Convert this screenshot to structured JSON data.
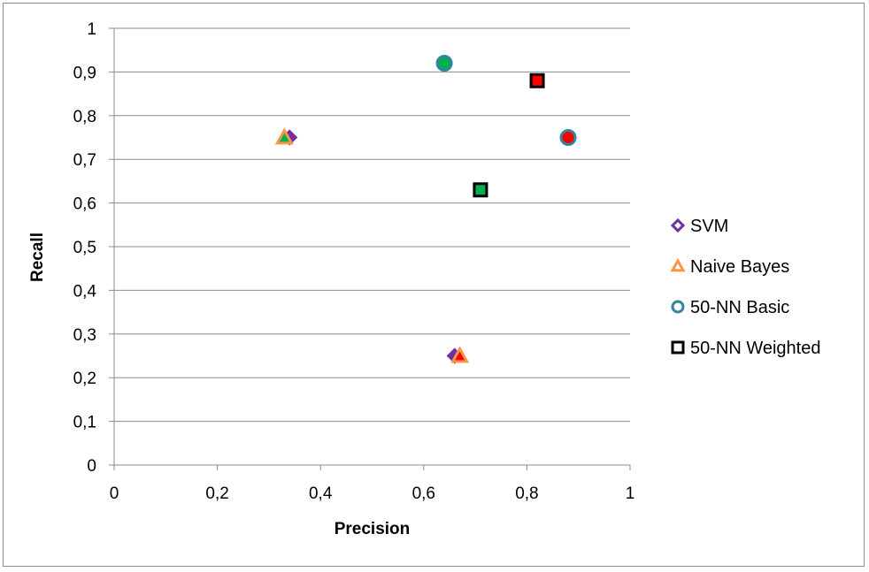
{
  "chart_data": {
    "type": "scatter",
    "xlabel": "Precision",
    "ylabel": "Recall",
    "xlim": [
      0,
      1
    ],
    "ylim": [
      0,
      1
    ],
    "x_ticks": [
      "0",
      "0,2",
      "0,4",
      "0,6",
      "0,8",
      "1"
    ],
    "y_ticks": [
      "0",
      "0,1",
      "0,2",
      "0,3",
      "0,4",
      "0,5",
      "0,6",
      "0,7",
      "0,8",
      "0,9",
      "1"
    ],
    "grid": "horizontal",
    "legend_position": "right",
    "series": [
      {
        "name": "SVM",
        "marker": "diamond",
        "outline_color": "#7030a0",
        "points": [
          {
            "x": 0.34,
            "y": 0.75,
            "fill": "#7030a0"
          },
          {
            "x": 0.66,
            "y": 0.25,
            "fill": "#7030a0"
          }
        ]
      },
      {
        "name": "Naive Bayes",
        "marker": "triangle",
        "outline_color": "#f79646",
        "points": [
          {
            "x": 0.33,
            "y": 0.75,
            "fill": "#00b050"
          },
          {
            "x": 0.67,
            "y": 0.25,
            "fill": "#ff0000"
          }
        ]
      },
      {
        "name": "50-NN Basic",
        "marker": "circle",
        "outline_color": "#31859c",
        "points": [
          {
            "x": 0.64,
            "y": 0.92,
            "fill": "#00b050"
          },
          {
            "x": 0.88,
            "y": 0.75,
            "fill": "#ff0000"
          }
        ]
      },
      {
        "name": "50-NN Weighted",
        "marker": "square",
        "outline_color": "#000000",
        "points": [
          {
            "x": 0.71,
            "y": 0.63,
            "fill": "#00b050"
          },
          {
            "x": 0.82,
            "y": 0.88,
            "fill": "#ff0000"
          }
        ]
      }
    ]
  }
}
